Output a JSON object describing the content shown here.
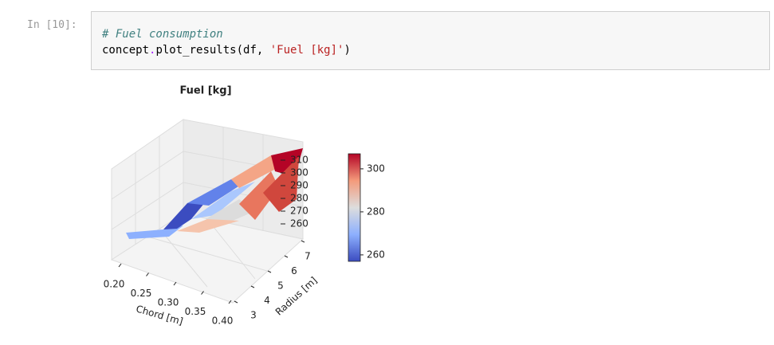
{
  "prompt": "In [10]:",
  "code": {
    "comment": "# Fuel consumption",
    "line2": [
      "concept",
      ".",
      "plot_results(df, ",
      "'Fuel [kg]'",
      ")"
    ]
  },
  "chart_data": {
    "type": "surface3d",
    "title": "Fuel [kg]",
    "x_label": "Chord [m]",
    "y_label": "Radius [m]",
    "xlim": [
      0.2,
      0.4
    ],
    "xticks": [
      {
        "value": 0.2,
        "label": "0.20"
      },
      {
        "value": 0.25,
        "label": "0.25"
      },
      {
        "value": 0.3,
        "label": "0.30"
      },
      {
        "value": 0.35,
        "label": "0.35"
      },
      {
        "value": 0.4,
        "label": "0.40"
      }
    ],
    "ylim": [
      3,
      7
    ],
    "yticks": [
      3,
      4,
      5,
      6,
      7
    ],
    "zlim": [
      260,
      310
    ],
    "zticks": [
      260,
      270,
      280,
      290,
      300,
      310
    ],
    "colorbar": {
      "clim": [
        257,
        307
      ],
      "ticks": [
        260,
        280,
        300
      ],
      "colors": [
        "#3b4cc0",
        "#8db0fe",
        "#dddddd",
        "#f49a7b",
        "#b40426"
      ]
    }
  }
}
